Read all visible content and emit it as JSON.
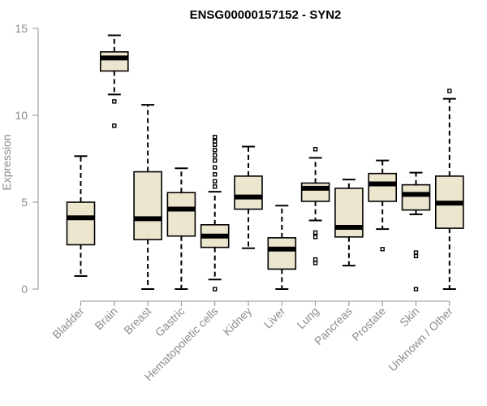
{
  "chart_data": {
    "type": "box",
    "title": "ENSG00000157152 - SYN2",
    "xlabel": "",
    "ylabel": "Expression",
    "ylim": [
      0,
      15
    ],
    "yticks": [
      0,
      5,
      10,
      15
    ],
    "grid": false,
    "colors": {
      "box_fill": "#ede6cf",
      "box_stroke": "#000000",
      "axis": "#8c8c8c"
    },
    "categories": [
      "Bladder",
      "Brain",
      "Breast",
      "Gastric",
      "Hematopoietic cells",
      "Kidney",
      "Liver",
      "Lung",
      "Pancreas",
      "Prostate",
      "Skin",
      "Unknown / Other"
    ],
    "boxes": [
      {
        "whisker_low": 0.75,
        "q1": 2.55,
        "median": 4.1,
        "q3": 5.0,
        "whisker_high": 7.65,
        "outliers": []
      },
      {
        "whisker_low": 11.2,
        "q1": 12.55,
        "median": 13.3,
        "q3": 13.65,
        "whisker_high": 14.6,
        "outliers": [
          10.8,
          9.4
        ]
      },
      {
        "whisker_low": 0.0,
        "q1": 2.85,
        "median": 4.05,
        "q3": 6.75,
        "whisker_high": 10.6,
        "outliers": []
      },
      {
        "whisker_low": 0.0,
        "q1": 3.05,
        "median": 4.6,
        "q3": 5.55,
        "whisker_high": 6.95,
        "outliers": []
      },
      {
        "whisker_low": 0.55,
        "q1": 2.4,
        "median": 3.05,
        "q3": 3.7,
        "whisker_high": 5.6,
        "outliers": [
          0.0,
          5.9,
          6.2,
          6.6,
          7.0,
          7.4,
          7.7,
          8.0,
          8.3,
          8.5,
          8.75
        ]
      },
      {
        "whisker_low": 2.35,
        "q1": 4.6,
        "median": 5.3,
        "q3": 6.5,
        "whisker_high": 8.2,
        "outliers": []
      },
      {
        "whisker_low": 0.0,
        "q1": 1.15,
        "median": 2.3,
        "q3": 2.95,
        "whisker_high": 4.8,
        "outliers": []
      },
      {
        "whisker_low": 3.95,
        "q1": 5.05,
        "median": 5.8,
        "q3": 6.1,
        "whisker_high": 7.55,
        "outliers": [
          8.05,
          3.25,
          3.0,
          1.7,
          1.5
        ]
      },
      {
        "whisker_low": 1.35,
        "q1": 3.0,
        "median": 3.55,
        "q3": 5.8,
        "whisker_high": 6.3,
        "outliers": []
      },
      {
        "whisker_low": 3.45,
        "q1": 5.05,
        "median": 6.05,
        "q3": 6.65,
        "whisker_high": 7.4,
        "outliers": [
          2.3
        ]
      },
      {
        "whisker_low": 4.3,
        "q1": 4.55,
        "median": 5.45,
        "q3": 6.0,
        "whisker_high": 6.7,
        "outliers": [
          2.1,
          1.9,
          0.0
        ]
      },
      {
        "whisker_low": 0.0,
        "q1": 3.5,
        "median": 4.95,
        "q3": 6.5,
        "whisker_high": 10.95,
        "outliers": [
          11.4
        ]
      }
    ]
  }
}
